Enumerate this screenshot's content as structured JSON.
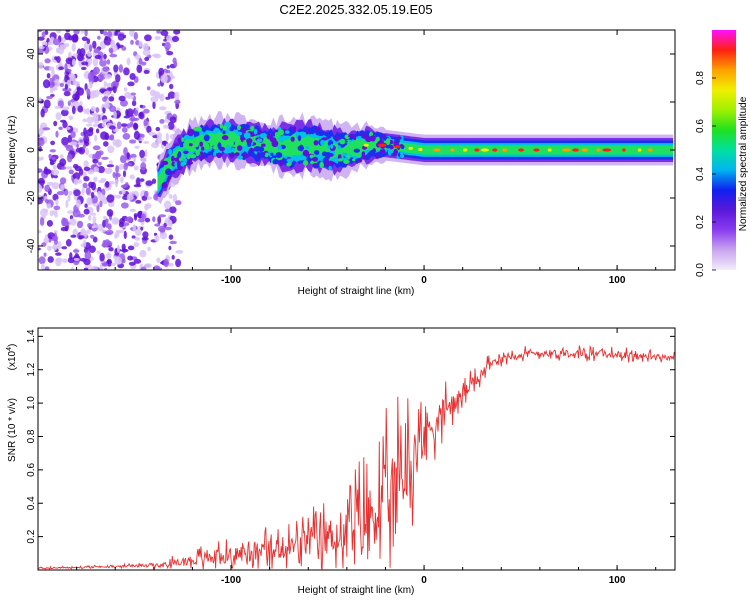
{
  "title": "C2E2.2025.332.05.19.E05",
  "chart_data": [
    {
      "type": "heatmap",
      "title": "C2E2.2025.332.05.19.E05",
      "xlabel": "Height of straight line (km)",
      "ylabel": "Frequency (Hz)",
      "xlim": [
        -200,
        130
      ],
      "ylim": [
        -50,
        50
      ],
      "xticks": [
        -100,
        0,
        100
      ],
      "yticks": [
        -40,
        -20,
        0,
        20,
        40
      ],
      "grid": false,
      "colorbar": {
        "label": "Normalized spectral amplitude",
        "range": [
          0,
          1
        ],
        "ticks": [
          "0.0",
          "0.2",
          "0.4",
          "0.6",
          "0.8"
        ],
        "tick_values": [
          0.0,
          0.2,
          0.4,
          0.6,
          0.8
        ],
        "colors": [
          "#f4ecfb",
          "#c9a5ef",
          "#8a3cf0",
          "#5a18d8",
          "#1020f0",
          "#00b4f0",
          "#00e0a0",
          "#20e020",
          "#a0f000",
          "#f0f000",
          "#ffa000",
          "#ff2010",
          "#ff10ff"
        ]
      },
      "noise_region_x": [
        -200,
        -132
      ],
      "signal_track": {
        "x": [
          -138,
          -130,
          -120,
          -110,
          -100,
          -90,
          -80,
          -70,
          -60,
          -50,
          -40,
          -30,
          -20,
          -10,
          0,
          20,
          40,
          60,
          80,
          100,
          130
        ],
        "center_hz": [
          -14,
          -4,
          2,
          4,
          4,
          3,
          2,
          1,
          2,
          0,
          0,
          2,
          2,
          1,
          0,
          0,
          0,
          0,
          0,
          0,
          0
        ],
        "halfwidth_hz": [
          5,
          6,
          6,
          6,
          6,
          6,
          6,
          7,
          7,
          7,
          6,
          5,
          4,
          4,
          4,
          4,
          4,
          4,
          4,
          4,
          4
        ]
      }
    },
    {
      "type": "line",
      "xlabel": "Height of straight line (km)",
      "ylabel": "SNR (10 * v/v)",
      "y_multiplier": "(x10",
      "y_multiplier_exp": "4",
      "y_multiplier_close": ")",
      "xlim": [
        -200,
        130
      ],
      "ylim": [
        0,
        1.45
      ],
      "xticks": [
        -100,
        0,
        100
      ],
      "yticks": [
        "0.2",
        "0.4",
        "0.6",
        "0.8",
        "1.0",
        "1.2",
        "1.4"
      ],
      "ytick_values": [
        0.2,
        0.4,
        0.6,
        0.8,
        1.0,
        1.2,
        1.4
      ],
      "color": "#e83030",
      "series": [
        {
          "name": "SNR",
          "x": [
            -200,
            -160,
            -135,
            -120,
            -100,
            -80,
            -60,
            -45,
            -30,
            -20,
            -12,
            -5,
            0,
            10,
            20,
            30,
            40,
            60,
            80,
            100,
            130
          ],
          "base": [
            0.01,
            0.02,
            0.03,
            0.06,
            0.09,
            0.12,
            0.16,
            0.22,
            0.3,
            0.42,
            0.55,
            0.7,
            0.82,
            0.95,
            1.05,
            1.18,
            1.28,
            1.3,
            1.3,
            1.29,
            1.27
          ],
          "spread": [
            0.01,
            0.01,
            0.03,
            0.08,
            0.12,
            0.15,
            0.2,
            0.3,
            0.45,
            0.55,
            0.6,
            0.4,
            0.3,
            0.2,
            0.1,
            0.08,
            0.06,
            0.05,
            0.05,
            0.05,
            0.04
          ]
        }
      ]
    }
  ]
}
